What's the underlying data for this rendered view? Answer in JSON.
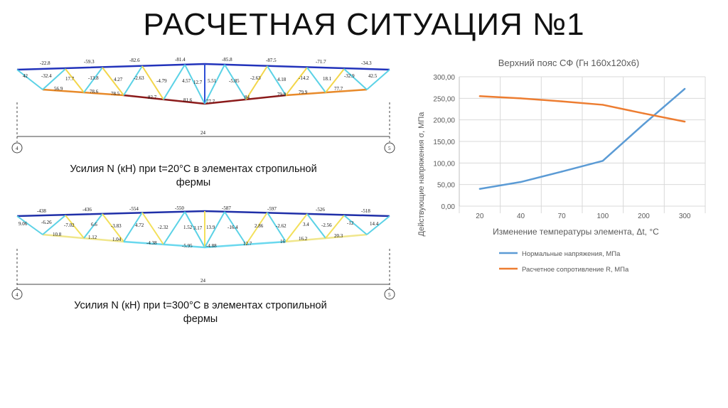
{
  "slide": {
    "title": "РАСЧЕТНАЯ СИТУАЦИЯ №1"
  },
  "truss1": {
    "caption_line1": "Усилия N (кН) при t=20°С в элементах стропильной",
    "caption_line2": "фермы",
    "span": "24",
    "node_left": "4",
    "node_right": "5",
    "top_labels": [
      "-22.8",
      "-59.3",
      "-82.6",
      "-81.4",
      "-85.8",
      "-87.5",
      "-71.7",
      "-34.3"
    ],
    "web_labels": [
      "42",
      "-32.4",
      "17.7",
      "-13.8",
      "4.27",
      "-2.63",
      "-4.79",
      "4.57",
      "12.7",
      "5.51",
      "-5.85",
      "-2.63",
      "4.18",
      "-14.2",
      "18.1",
      "-32.9",
      "42.5"
    ],
    "bottom_labels": [
      "56.9",
      "78.6",
      "78.5",
      "82.7",
      "81.6",
      "77.7",
      "84",
      "79.9",
      "79.9",
      "77.7"
    ],
    "colors": {
      "top": "#2233bb",
      "bottom_mid": "#8b1a1a",
      "bottom_end": "#e88a2a",
      "web_a": "#f3d64a",
      "web_b": "#5bd2e6",
      "web_c": "#2d4ed6"
    }
  },
  "truss2": {
    "caption_line1": "Усилия N (кН) при t=300°С в элементах стропильной",
    "caption_line2": "фермы",
    "span": "24",
    "node_left": "4",
    "node_right": "5",
    "top_labels": [
      "-438",
      "-436",
      "-554",
      "-550",
      "-587",
      "-597",
      "-526",
      "-518"
    ],
    "web_labels": [
      "9.06",
      "-6.26",
      "10.8",
      "-7.02",
      "6.6",
      "1.12",
      "-3.83",
      "1.04",
      "4.72",
      "-2.32",
      "1.52",
      "3.17",
      "13.9",
      "-16.4",
      "2.86",
      "-2.62",
      "3.4",
      "-2.56",
      "-12",
      "14.4"
    ],
    "bottom_labels": [
      "-4.38",
      "-5.95",
      "-4.88",
      "12.7",
      "16",
      "16.2",
      "20.3"
    ],
    "colors": {
      "top": "#1f2fa8",
      "bottom_mid": "#6ad8ee",
      "bottom_end": "#f0e68c",
      "web_a": "#f3e05a",
      "web_b": "#5bd2e6"
    }
  },
  "chart_data": {
    "type": "line",
    "title": "Верхний пояс СФ (Гн 160х120х6)",
    "xlabel": "Изменение температуры элемента, Δt, °С",
    "ylabel": "Действующие напряжения σ, МПа",
    "categories": [
      "20",
      "40",
      "70",
      "100",
      "200",
      "300"
    ],
    "yticks": [
      "0,00",
      "50,00",
      "100,00",
      "150,00",
      "200,00",
      "250,00",
      "300,00"
    ],
    "ylim": [
      0,
      300
    ],
    "grid": true,
    "legend_position": "bottom",
    "series": [
      {
        "name": "Нормальные напряжения, МПа",
        "color": "#5b9bd5",
        "values": [
          40,
          56,
          80,
          105,
          190,
          272
        ]
      },
      {
        "name": "Расчетное сопротивление R, МПа",
        "color": "#ed7d31",
        "values": [
          255,
          250,
          243,
          235,
          215,
          196
        ]
      }
    ]
  }
}
